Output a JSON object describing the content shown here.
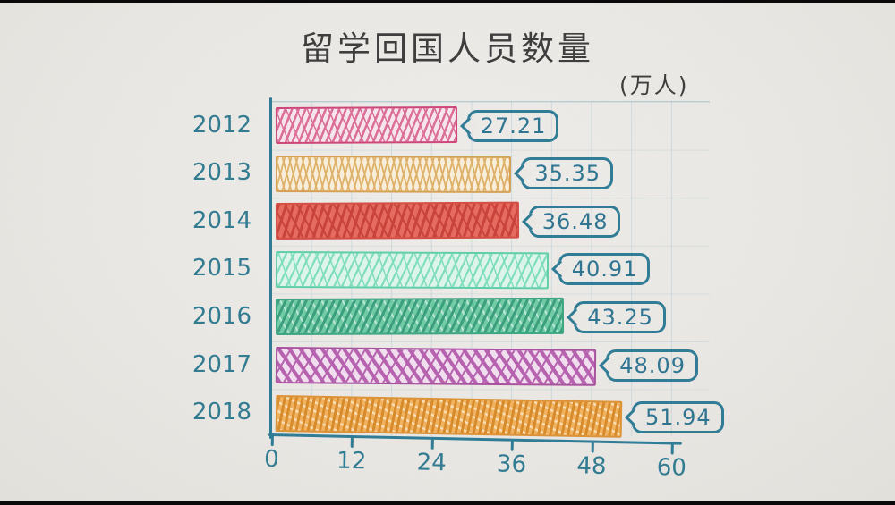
{
  "header": {
    "title": "留学回国人员数量",
    "unit_label": "(万人)"
  },
  "chart_data": {
    "type": "bar",
    "orientation": "horizontal",
    "title": "留学回国人员数量",
    "unit": "万人",
    "categories": [
      "2012",
      "2013",
      "2014",
      "2015",
      "2016",
      "2017",
      "2018"
    ],
    "values": [
      27.21,
      35.35,
      36.48,
      40.91,
      43.25,
      48.09,
      51.94
    ],
    "xlim": [
      0,
      60
    ],
    "x_ticks": [
      0,
      12,
      24,
      36,
      48,
      60
    ],
    "grid": true,
    "legend": "none",
    "style_note": "hand-drawn sketch bars with hatching, value callouts at bar ends",
    "axis_color": "#2d7b95",
    "label_color": "#2f7a90",
    "title_color": "#3b3b3b",
    "background_color": "#ebe9e5",
    "series_colors": [
      {
        "border": "#ce4479",
        "stroke": "#dc6e97",
        "stroke2": "rgba(255,255,255,0)",
        "fill": "#f8e6ed"
      },
      {
        "border": "#d6a050",
        "stroke": "#dfb167",
        "stroke2": "rgba(255,255,255,0)",
        "fill": "#f9efdb"
      },
      {
        "border": "#d44d42",
        "stroke": "#c94138",
        "stroke2": "rgba(255,255,255,0)",
        "fill": "#e7695e"
      },
      {
        "border": "#5ecfa9",
        "stroke": "#7fdfbf",
        "stroke2": "rgba(255,255,255,0)",
        "fill": "#def6ec"
      },
      {
        "border": "#3da583",
        "stroke": "#399e7c",
        "stroke2": "rgba(255,255,255,0.55)",
        "fill": "#6fcca6"
      },
      {
        "border": "#a8509f",
        "stroke": "#b660af",
        "stroke2": "rgba(255,255,255,0)",
        "fill": "#f2dff0"
      },
      {
        "border": "#dd9134",
        "stroke": "#d88a28",
        "stroke2": "rgba(255,250,235,0.6)",
        "fill": "#f2b25d"
      }
    ]
  }
}
